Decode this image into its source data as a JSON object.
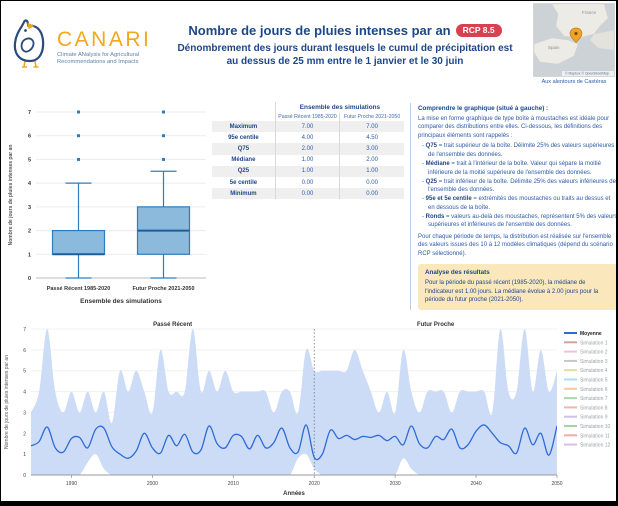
{
  "header": {
    "logo": {
      "name": "CANARI",
      "tagline_line1": "Climate ANalysis for Agricultural",
      "tagline_line2": "Recommendations and Impacts"
    },
    "title": "Nombre de jours de pluies intenses par an",
    "badge": "RCP 8.5",
    "subtitle": "Dénombrement des jours durant lesquels le cumul de précipitation est au dessus de 25 mm entre le 1 janvier et le 30 juin",
    "map": {
      "caption": "Aux alentours de Castéras",
      "attribution": "© Mapbox © OpenStreetMap",
      "labels": [
        "France",
        "Spain"
      ]
    }
  },
  "table": {
    "group_header": "Ensemble des simulations",
    "columns": [
      "Passé Récent 1985-2020",
      "Futur Proche 2021-2050"
    ],
    "rows": [
      {
        "label": "Maximum",
        "values": [
          "7.00",
          "7.00"
        ]
      },
      {
        "label": "95e centile",
        "values": [
          "4.00",
          "4.50"
        ]
      },
      {
        "label": "Q75",
        "values": [
          "2.00",
          "3.00"
        ]
      },
      {
        "label": "Médiane",
        "values": [
          "1.00",
          "2.00"
        ]
      },
      {
        "label": "Q25",
        "values": [
          "1.00",
          "1.00"
        ]
      },
      {
        "label": "5e centile",
        "values": [
          "0.00",
          "0.00"
        ]
      },
      {
        "label": "Minimum",
        "values": [
          "0.00",
          "0.00"
        ]
      }
    ]
  },
  "explainer": {
    "title": "Comprendre le graphique (situé à gauche) :",
    "intro": "La mise en forme graphique de type boîte à moustaches est idéale pour comparer des distributions entre elles. Ci-dessous, les définitions des principaux éléments sont rappelés :",
    "bullets": [
      {
        "term": "Q75",
        "text": "= trait supérieur de la boîte. Délimite 25% des valeurs supérieures de l'ensemble des données."
      },
      {
        "term": "Médiane",
        "text": "= trait à l'intérieur de la boîte. Valeur qui sépare la moitié inférieure de la moitié supérieure de l'ensemble des données."
      },
      {
        "term": "Q25",
        "text": "= trait inférieur de la boîte. Délimite 25% des valeurs inférieures de l'ensemble des données."
      },
      {
        "term": "95e et 5e centile",
        "text": "= extrémités des moustaches ou traits au dessus et en dessous de la boîte."
      },
      {
        "term": "Ronds",
        "text": "= valeurs au-delà des moustaches, représentent 5% des valeurs supérieures et inférieures de l'ensemble des données."
      }
    ],
    "footer": "Pour chaque période de temps, la distribution est réalisée sur l'ensemble des valeurs issues des 10 à 12 modèles climatiques (dépend du scénario RCP sélectionné).",
    "analysis_title": "Analyse des résultats",
    "analysis_text": "Pour la période du passé récent (1985-2020), la médiane de l'indicateur est 1.00 jours. La médiane évolue à 2.00 jours pour la période du futur proche (2021-2050)."
  },
  "chart_data": [
    {
      "type": "box",
      "xlabel": "Ensemble des simulations",
      "ylabel": "Nombre de jours de pluies intenses par an",
      "ylim": [
        0,
        7
      ],
      "yticks": [
        0,
        1,
        2,
        3,
        4,
        5,
        6,
        7
      ],
      "boxes": [
        {
          "label": "Passé Récent 1985-2020",
          "p5": 0,
          "q25": 1,
          "median": 1,
          "q75": 2,
          "p95": 4,
          "outliers": [
            5,
            6,
            7
          ]
        },
        {
          "label": "Futur Proche 2021-2050",
          "p5": 0,
          "q25": 1,
          "median": 2,
          "q75": 3,
          "p95": 4.5,
          "outliers": [
            5,
            6,
            7
          ]
        }
      ],
      "box_fill": "#8cbadc",
      "box_stroke": "#2d7dbe",
      "median_color": "#1a5e9e"
    },
    {
      "type": "area",
      "title_left": "Passé Récent",
      "title_right": "Futur Proche",
      "xlabel": "Années",
      "ylabel": "Nombre de jours de pluies intenses par an",
      "xlim": [
        1985,
        2050
      ],
      "ylim": [
        0,
        7
      ],
      "xticks": [
        1990,
        2000,
        2010,
        2020,
        2030,
        2040,
        2050
      ],
      "yticks": [
        0,
        1,
        2,
        3,
        4,
        5,
        6,
        7
      ],
      "divider_year": 2020,
      "x_start": 1985,
      "mean": [
        1.4,
        1.6,
        2.3,
        1.3,
        1.1,
        1.75,
        1.8,
        1.3,
        2.2,
        2.25,
        1.35,
        1.0,
        0.8,
        1.15,
        2.0,
        1.3,
        1.05,
        1.9,
        1.4,
        1.95,
        1.1,
        1.2,
        2.35,
        1.5,
        1.3,
        1.9,
        1.85,
        1.25,
        1.9,
        1.3,
        1.55,
        2.25,
        1.3,
        1.1,
        2.4,
        0.85,
        1.0,
        2.15,
        1.75,
        1.9,
        1.7,
        1.85,
        1.8,
        1.9,
        1.65,
        1.85,
        1.45,
        2.35,
        1.5,
        1.3,
        1.85,
        1.7,
        2.2,
        1.3,
        1.45,
        2.1,
        2.4,
        2.0,
        1.55,
        1.4,
        1.05,
        2.25,
        1.45,
        2.0,
        0.95,
        2.35
      ],
      "envelope_upper": [
        3,
        4,
        7,
        4,
        3,
        4,
        3,
        4,
        3,
        4,
        2.5,
        5,
        4,
        5,
        4,
        3,
        6,
        4,
        4,
        4,
        7,
        4,
        5,
        4,
        5,
        4,
        4,
        4,
        4,
        4,
        3,
        4,
        4,
        3,
        6,
        5,
        5,
        5,
        5,
        5,
        6,
        5,
        4,
        3,
        4,
        3,
        6,
        4,
        3,
        4,
        4,
        4,
        3,
        4,
        4,
        4,
        4,
        3,
        7,
        4,
        4,
        7,
        4,
        6,
        4,
        5
      ],
      "envelope_lower": [
        0,
        0,
        0,
        0,
        0,
        0,
        0,
        0.6,
        1,
        0.3,
        0,
        0,
        0,
        0,
        0,
        0,
        0,
        0,
        0,
        0,
        0,
        0,
        0,
        0,
        0,
        0,
        0,
        0,
        0,
        0,
        0,
        0,
        0,
        0.8,
        1,
        0.3,
        0,
        0,
        0,
        0,
        0,
        0,
        0,
        0,
        0,
        0,
        0.8,
        0.3,
        0,
        0,
        0,
        0,
        0,
        0,
        0,
        0,
        0,
        0,
        0,
        0,
        0,
        0,
        0,
        0,
        0,
        0
      ],
      "mean_color": "#2e6bd9",
      "envelope_color": "#ccdcf6",
      "legend": [
        {
          "label": "Moyenne",
          "color": "#2e6bd9",
          "active": true
        },
        {
          "label": "Simulation 1",
          "color": "#c4827a",
          "active": false
        },
        {
          "label": "Simulation 2",
          "color": "#eeaad6",
          "active": false
        },
        {
          "label": "Simulation 3",
          "color": "#b3b3b3",
          "active": false
        },
        {
          "label": "Simulation 4",
          "color": "#d8cf7c",
          "active": false
        },
        {
          "label": "Simulation 5",
          "color": "#8bd8e6",
          "active": false
        },
        {
          "label": "Simulation 6",
          "color": "#f4b978",
          "active": false
        },
        {
          "label": "Simulation 7",
          "color": "#90cd90",
          "active": false
        },
        {
          "label": "Simulation 8",
          "color": "#ee9a93",
          "active": false
        },
        {
          "label": "Simulation 9",
          "color": "#bcaede",
          "active": false
        },
        {
          "label": "Simulation 10",
          "color": "#84c77e",
          "active": false
        },
        {
          "label": "Simulation 11",
          "color": "#ea8f85",
          "active": false
        },
        {
          "label": "Simulation 12",
          "color": "#c9abe2",
          "active": false
        }
      ]
    }
  ],
  "colors": {
    "title_navy": "#1c4789",
    "body_blue": "#2c5ba8",
    "badge_red": "#d8414f",
    "logo_yellow": "#f2a71e",
    "analysis_bg": "#fae7bc",
    "divider_blue": "#b9d1ea"
  }
}
